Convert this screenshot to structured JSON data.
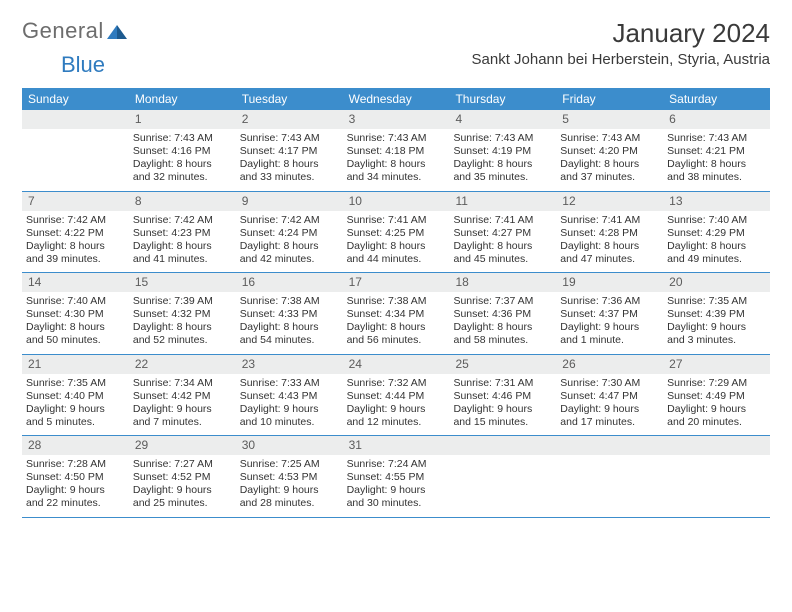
{
  "logo": {
    "general": "General",
    "blue": "Blue"
  },
  "title": "January 2024",
  "location": "Sankt Johann bei Herberstein, Styria, Austria",
  "colors": {
    "header_bg": "#3c8dcc",
    "header_text": "#ffffff",
    "daynum_bg": "#eceded",
    "daynum_text": "#5c5c5c",
    "body_text": "#333333",
    "rule": "#3c8dcc",
    "logo_general": "#6d6d6d",
    "logo_blue": "#2f7bbf"
  },
  "days_of_week": [
    "Sunday",
    "Monday",
    "Tuesday",
    "Wednesday",
    "Thursday",
    "Friday",
    "Saturday"
  ],
  "weeks": [
    [
      null,
      {
        "n": "1",
        "sunrise": "7:43 AM",
        "sunset": "4:16 PM",
        "daylight": "8 hours and 32 minutes."
      },
      {
        "n": "2",
        "sunrise": "7:43 AM",
        "sunset": "4:17 PM",
        "daylight": "8 hours and 33 minutes."
      },
      {
        "n": "3",
        "sunrise": "7:43 AM",
        "sunset": "4:18 PM",
        "daylight": "8 hours and 34 minutes."
      },
      {
        "n": "4",
        "sunrise": "7:43 AM",
        "sunset": "4:19 PM",
        "daylight": "8 hours and 35 minutes."
      },
      {
        "n": "5",
        "sunrise": "7:43 AM",
        "sunset": "4:20 PM",
        "daylight": "8 hours and 37 minutes."
      },
      {
        "n": "6",
        "sunrise": "7:43 AM",
        "sunset": "4:21 PM",
        "daylight": "8 hours and 38 minutes."
      }
    ],
    [
      {
        "n": "7",
        "sunrise": "7:42 AM",
        "sunset": "4:22 PM",
        "daylight": "8 hours and 39 minutes."
      },
      {
        "n": "8",
        "sunrise": "7:42 AM",
        "sunset": "4:23 PM",
        "daylight": "8 hours and 41 minutes."
      },
      {
        "n": "9",
        "sunrise": "7:42 AM",
        "sunset": "4:24 PM",
        "daylight": "8 hours and 42 minutes."
      },
      {
        "n": "10",
        "sunrise": "7:41 AM",
        "sunset": "4:25 PM",
        "daylight": "8 hours and 44 minutes."
      },
      {
        "n": "11",
        "sunrise": "7:41 AM",
        "sunset": "4:27 PM",
        "daylight": "8 hours and 45 minutes."
      },
      {
        "n": "12",
        "sunrise": "7:41 AM",
        "sunset": "4:28 PM",
        "daylight": "8 hours and 47 minutes."
      },
      {
        "n": "13",
        "sunrise": "7:40 AM",
        "sunset": "4:29 PM",
        "daylight": "8 hours and 49 minutes."
      }
    ],
    [
      {
        "n": "14",
        "sunrise": "7:40 AM",
        "sunset": "4:30 PM",
        "daylight": "8 hours and 50 minutes."
      },
      {
        "n": "15",
        "sunrise": "7:39 AM",
        "sunset": "4:32 PM",
        "daylight": "8 hours and 52 minutes."
      },
      {
        "n": "16",
        "sunrise": "7:38 AM",
        "sunset": "4:33 PM",
        "daylight": "8 hours and 54 minutes."
      },
      {
        "n": "17",
        "sunrise": "7:38 AM",
        "sunset": "4:34 PM",
        "daylight": "8 hours and 56 minutes."
      },
      {
        "n": "18",
        "sunrise": "7:37 AM",
        "sunset": "4:36 PM",
        "daylight": "8 hours and 58 minutes."
      },
      {
        "n": "19",
        "sunrise": "7:36 AM",
        "sunset": "4:37 PM",
        "daylight": "9 hours and 1 minute."
      },
      {
        "n": "20",
        "sunrise": "7:35 AM",
        "sunset": "4:39 PM",
        "daylight": "9 hours and 3 minutes."
      }
    ],
    [
      {
        "n": "21",
        "sunrise": "7:35 AM",
        "sunset": "4:40 PM",
        "daylight": "9 hours and 5 minutes."
      },
      {
        "n": "22",
        "sunrise": "7:34 AM",
        "sunset": "4:42 PM",
        "daylight": "9 hours and 7 minutes."
      },
      {
        "n": "23",
        "sunrise": "7:33 AM",
        "sunset": "4:43 PM",
        "daylight": "9 hours and 10 minutes."
      },
      {
        "n": "24",
        "sunrise": "7:32 AM",
        "sunset": "4:44 PM",
        "daylight": "9 hours and 12 minutes."
      },
      {
        "n": "25",
        "sunrise": "7:31 AM",
        "sunset": "4:46 PM",
        "daylight": "9 hours and 15 minutes."
      },
      {
        "n": "26",
        "sunrise": "7:30 AM",
        "sunset": "4:47 PM",
        "daylight": "9 hours and 17 minutes."
      },
      {
        "n": "27",
        "sunrise": "7:29 AM",
        "sunset": "4:49 PM",
        "daylight": "9 hours and 20 minutes."
      }
    ],
    [
      {
        "n": "28",
        "sunrise": "7:28 AM",
        "sunset": "4:50 PM",
        "daylight": "9 hours and 22 minutes."
      },
      {
        "n": "29",
        "sunrise": "7:27 AM",
        "sunset": "4:52 PM",
        "daylight": "9 hours and 25 minutes."
      },
      {
        "n": "30",
        "sunrise": "7:25 AM",
        "sunset": "4:53 PM",
        "daylight": "9 hours and 28 minutes."
      },
      {
        "n": "31",
        "sunrise": "7:24 AM",
        "sunset": "4:55 PM",
        "daylight": "9 hours and 30 minutes."
      },
      null,
      null,
      null
    ]
  ],
  "labels": {
    "sunrise": "Sunrise:",
    "sunset": "Sunset:",
    "daylight": "Daylight:"
  }
}
